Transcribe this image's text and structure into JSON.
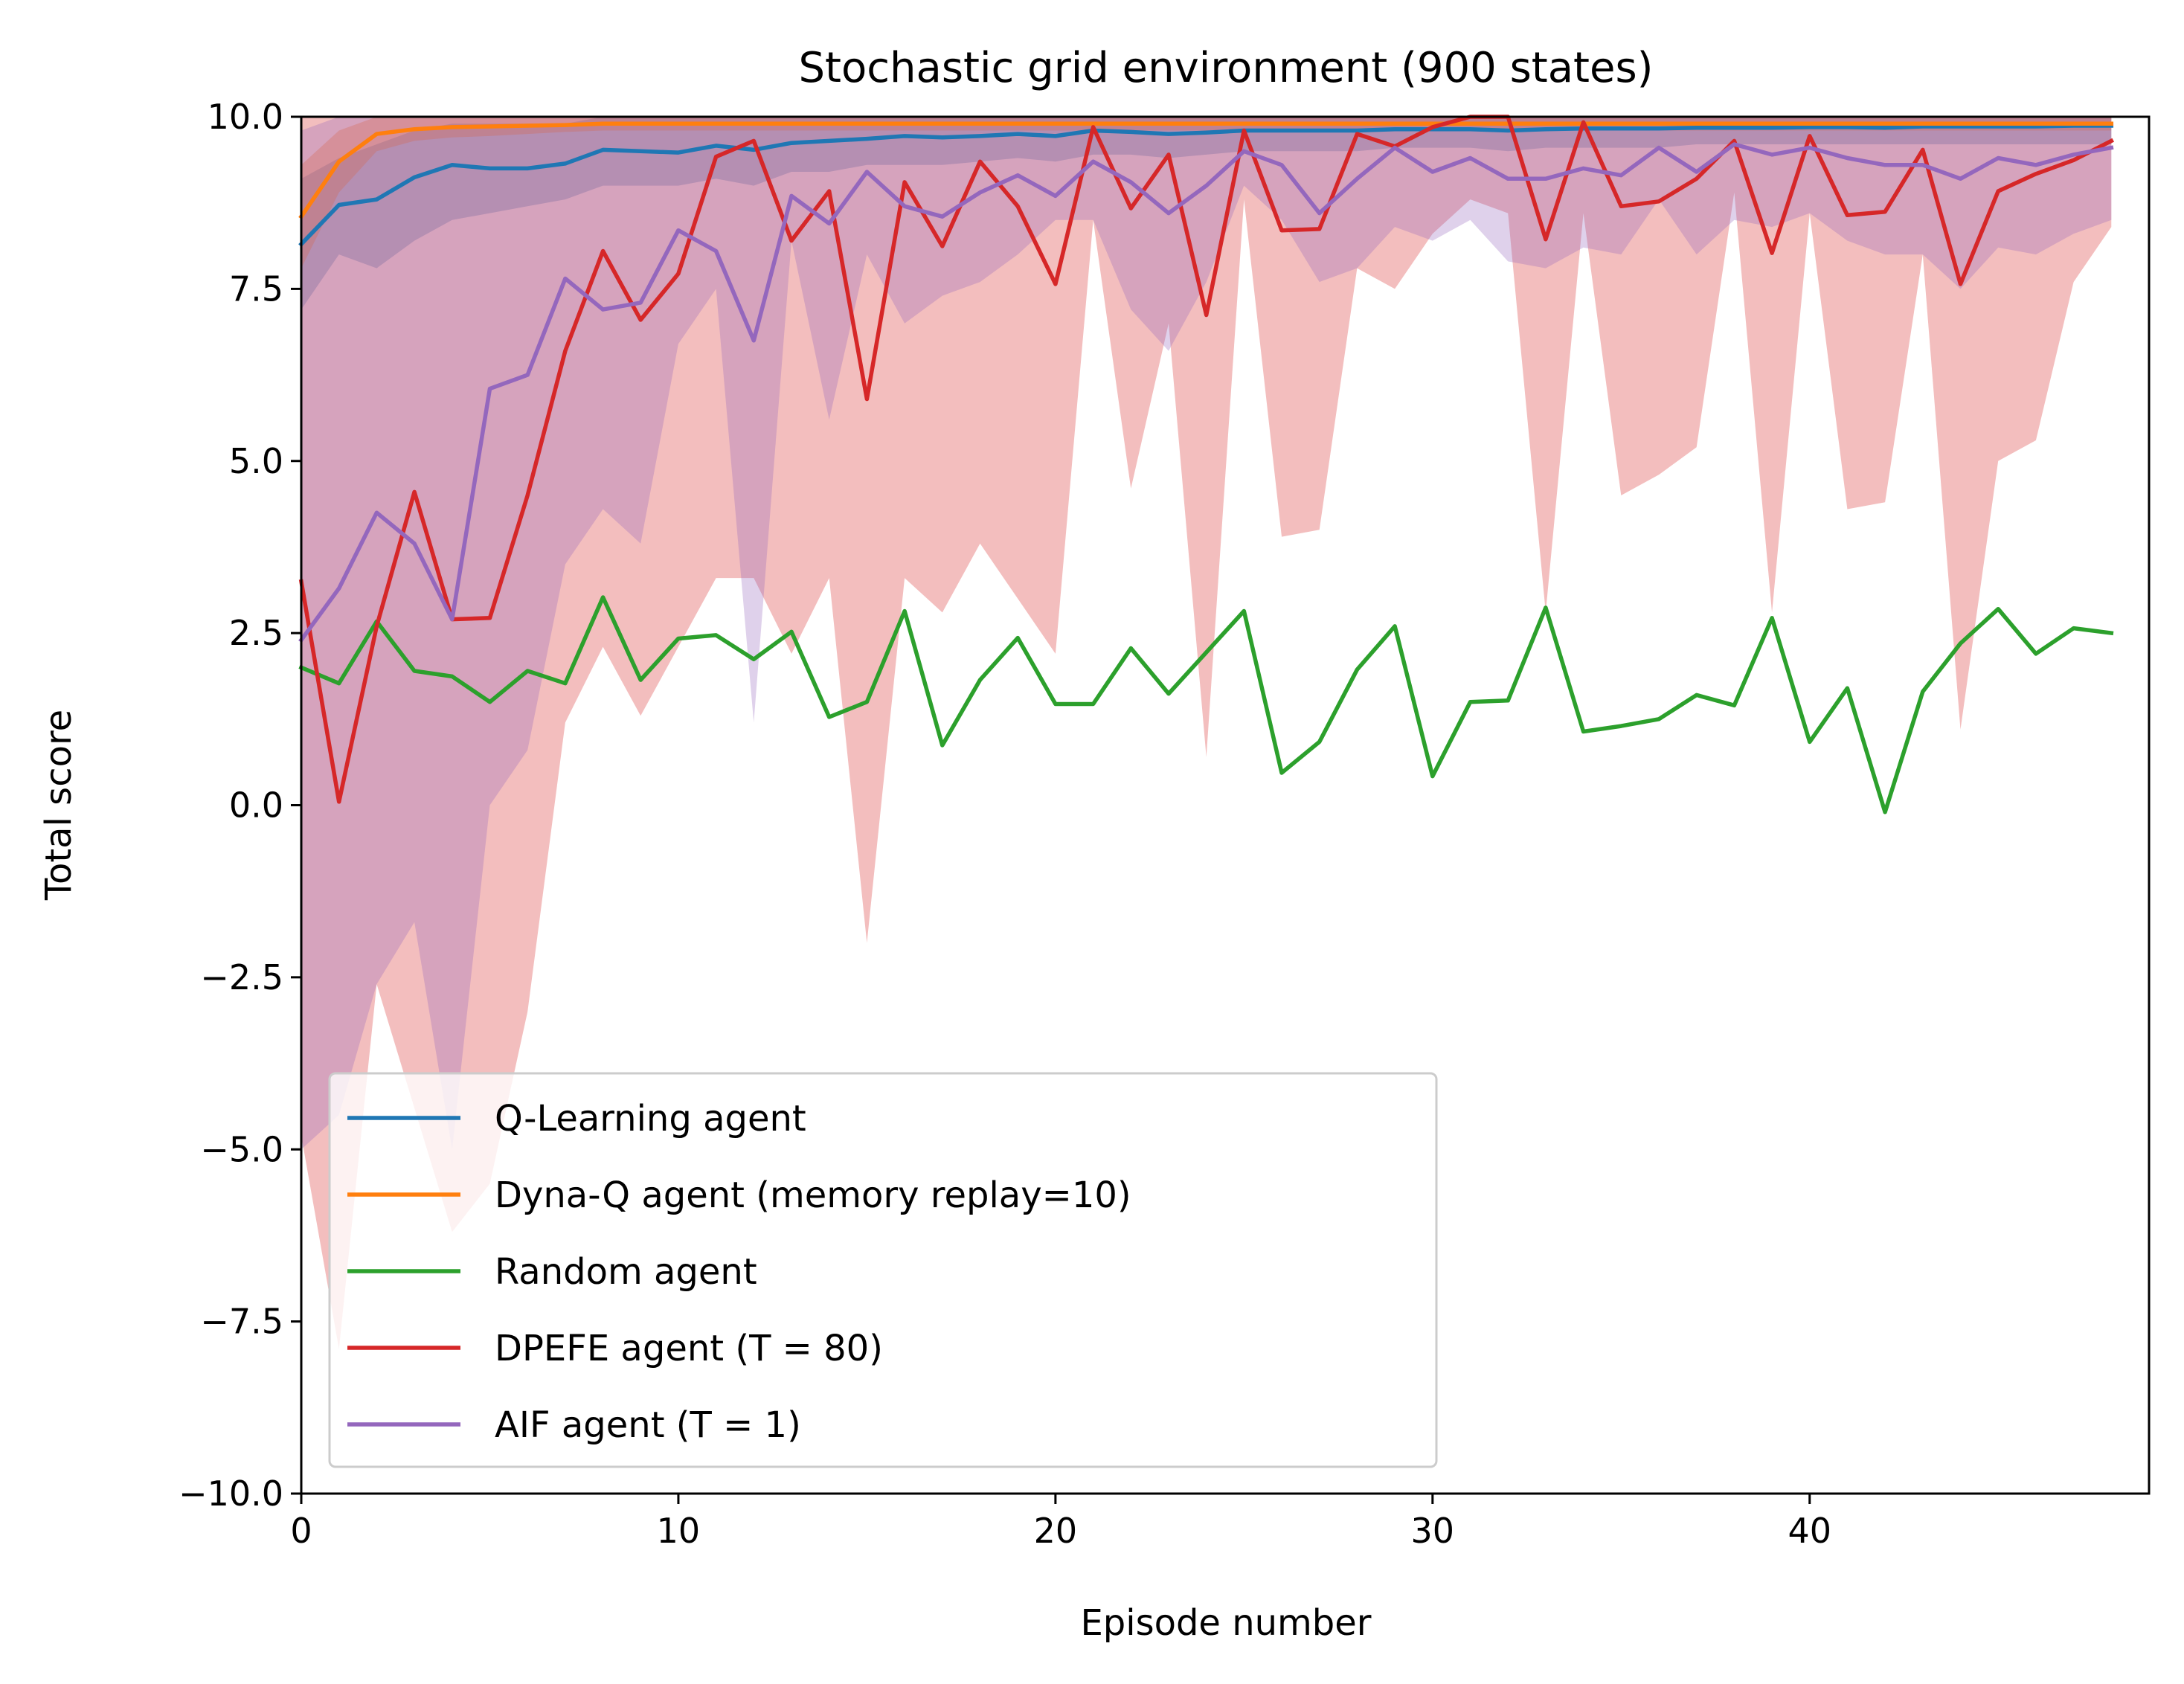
{
  "chart_data": {
    "type": "line",
    "title": "Stochastic grid environment (900 states)",
    "xlabel": "Episode number",
    "ylabel": "Total score",
    "xlim": [
      0,
      49
    ],
    "ylim": [
      -10,
      10
    ],
    "x_ticks": [
      0,
      10,
      20,
      30,
      40
    ],
    "x_tick_labels": [
      "0",
      "10",
      "20",
      "30",
      "40"
    ],
    "y_ticks": [
      -10,
      -7.5,
      -5,
      -2.5,
      0,
      2.5,
      5,
      7.5,
      10
    ],
    "y_tick_labels": [
      "−10.0",
      "−7.5",
      "−5.0",
      "−2.5",
      "0.0",
      "2.5",
      "5.0",
      "7.5",
      "10.0"
    ],
    "grid": false,
    "legend_position": "lower-left",
    "x": [
      0,
      1,
      2,
      3,
      4,
      5,
      6,
      7,
      8,
      9,
      10,
      11,
      12,
      13,
      14,
      15,
      16,
      17,
      18,
      19,
      20,
      21,
      22,
      23,
      24,
      25,
      26,
      27,
      28,
      29,
      30,
      31,
      32,
      33,
      34,
      35,
      36,
      37,
      38,
      39,
      40,
      41,
      42,
      43,
      44,
      45,
      46,
      47,
      48
    ],
    "series": [
      {
        "name": "Q-Learning agent",
        "color": "#1f77b4",
        "values": [
          8.15,
          8.72,
          8.8,
          9.12,
          9.3,
          9.25,
          9.25,
          9.32,
          9.52,
          9.5,
          9.48,
          9.58,
          9.52,
          9.62,
          9.65,
          9.68,
          9.72,
          9.7,
          9.72,
          9.75,
          9.72,
          9.8,
          9.78,
          9.75,
          9.77,
          9.8,
          9.8,
          9.8,
          9.8,
          9.82,
          9.82,
          9.82,
          9.8,
          9.82,
          9.83,
          9.83,
          9.83,
          9.84,
          9.84,
          9.84,
          9.85,
          9.85,
          9.84,
          9.86,
          9.86,
          9.86,
          9.86,
          9.87,
          9.87
        ],
        "band_lower": [
          7.2,
          8.0,
          7.8,
          8.2,
          8.5,
          8.6,
          8.7,
          8.8,
          9.0,
          9.0,
          9.0,
          9.1,
          9.0,
          9.2,
          9.2,
          9.3,
          9.3,
          9.3,
          9.35,
          9.4,
          9.35,
          9.45,
          9.45,
          9.4,
          9.45,
          9.5,
          9.5,
          9.5,
          9.5,
          9.55,
          9.55,
          9.55,
          9.5,
          9.55,
          9.55,
          9.55,
          9.55,
          9.6,
          9.6,
          9.6,
          9.6,
          9.6,
          9.6,
          9.6,
          9.6,
          9.6,
          9.6,
          9.6,
          9.6
        ],
        "band_upper": [
          9.1,
          9.4,
          9.6,
          9.8,
          9.9,
          9.9,
          9.9,
          9.9,
          10.0,
          10.0,
          10.0,
          10.0,
          10.0,
          10.0,
          10.0,
          10.0,
          10.0,
          10.0,
          10.0,
          10.0,
          10.0,
          10.0,
          10.0,
          10.0,
          10.0,
          10.0,
          10.0,
          10.0,
          10.0,
          10.0,
          10.0,
          10.0,
          10.0,
          10.0,
          10.0,
          10.0,
          10.0,
          10.0,
          10.0,
          10.0,
          10.0,
          10.0,
          10.0,
          10.0,
          10.0,
          10.0,
          10.0,
          10.0,
          10.0
        ]
      },
      {
        "name": "Dyna-Q agent (memory replay=10)",
        "color": "#ff7f0e",
        "values": [
          8.55,
          9.35,
          9.75,
          9.82,
          9.85,
          9.86,
          9.87,
          9.88,
          9.9,
          9.9,
          9.9,
          9.9,
          9.9,
          9.9,
          9.9,
          9.9,
          9.9,
          9.9,
          9.9,
          9.9,
          9.9,
          9.9,
          9.9,
          9.9,
          9.9,
          9.9,
          9.9,
          9.9,
          9.9,
          9.9,
          9.9,
          9.9,
          9.9,
          9.9,
          9.9,
          9.9,
          9.9,
          9.9,
          9.9,
          9.9,
          9.9,
          9.9,
          9.9,
          9.9,
          9.9,
          9.9,
          9.9,
          9.9,
          9.9
        ],
        "band_lower": [
          7.8,
          8.9,
          9.5,
          9.65,
          9.7,
          9.72,
          9.75,
          9.78,
          9.8,
          9.8,
          9.8,
          9.8,
          9.8,
          9.8,
          9.8,
          9.8,
          9.8,
          9.8,
          9.8,
          9.8,
          9.8,
          9.8,
          9.8,
          9.8,
          9.8,
          9.8,
          9.8,
          9.8,
          9.8,
          9.8,
          9.8,
          9.8,
          9.8,
          9.8,
          9.8,
          9.8,
          9.8,
          9.8,
          9.8,
          9.8,
          9.8,
          9.8,
          9.8,
          9.8,
          9.8,
          9.8,
          9.8,
          9.8,
          9.8
        ],
        "band_upper": [
          9.3,
          9.8,
          10.0,
          10.0,
          10.0,
          10.0,
          10.0,
          10.0,
          10.0,
          10.0,
          10.0,
          10.0,
          10.0,
          10.0,
          10.0,
          10.0,
          10.0,
          10.0,
          10.0,
          10.0,
          10.0,
          10.0,
          10.0,
          10.0,
          10.0,
          10.0,
          10.0,
          10.0,
          10.0,
          10.0,
          10.0,
          10.0,
          10.0,
          10.0,
          10.0,
          10.0,
          10.0,
          10.0,
          10.0,
          10.0,
          10.0,
          10.0,
          10.0,
          10.0,
          10.0,
          10.0,
          10.0,
          10.0,
          10.0
        ]
      },
      {
        "name": "Random agent",
        "color": "#2ca02c",
        "values": [
          2.0,
          1.77,
          2.67,
          1.95,
          1.87,
          1.5,
          1.95,
          1.77,
          3.02,
          1.82,
          2.42,
          2.47,
          2.12,
          2.52,
          1.28,
          1.5,
          2.82,
          0.87,
          1.82,
          2.43,
          1.47,
          1.47,
          2.28,
          1.62,
          2.22,
          2.82,
          0.47,
          0.92,
          1.97,
          2.6,
          0.42,
          1.5,
          1.52,
          2.87,
          1.07,
          1.15,
          1.25,
          1.6,
          1.45,
          2.72,
          0.92,
          1.7,
          -0.1,
          1.65,
          2.35,
          2.85,
          2.2,
          2.57,
          2.5
        ]
      },
      {
        "name": "DPEFE agent (T = 80)",
        "color": "#d62728",
        "values": [
          3.25,
          0.05,
          2.6,
          4.55,
          2.7,
          2.72,
          4.5,
          6.6,
          8.05,
          7.05,
          7.72,
          9.42,
          9.65,
          8.2,
          8.92,
          5.9,
          9.05,
          8.12,
          9.35,
          8.7,
          7.57,
          9.85,
          8.67,
          9.45,
          7.12,
          9.8,
          8.35,
          8.37,
          9.75,
          9.57,
          9.85,
          10.0,
          10.0,
          8.22,
          9.92,
          8.7,
          8.77,
          9.1,
          9.65,
          8.02,
          9.72,
          8.57,
          8.62,
          9.52,
          7.57,
          8.92,
          9.17,
          9.37,
          9.65
        ],
        "band_lower": [
          -4.8,
          -7.9,
          -2.6,
          -4.4,
          -6.2,
          -5.5,
          -3.0,
          1.2,
          2.3,
          1.3,
          2.3,
          3.3,
          3.3,
          2.2,
          3.3,
          -2.0,
          3.3,
          2.8,
          3.8,
          3.0,
          2.2,
          8.5,
          4.6,
          7.0,
          0.7,
          8.8,
          3.9,
          4.0,
          7.8,
          7.5,
          8.3,
          8.8,
          8.6,
          2.8,
          8.6,
          4.5,
          4.8,
          5.2,
          8.9,
          2.8,
          8.6,
          4.3,
          4.4,
          8.0,
          1.1,
          5.0,
          5.3,
          7.6,
          8.4
        ],
        "band_upper": [
          10.0,
          10.0,
          10.0,
          10.0,
          10.0,
          10.0,
          10.0,
          10.0,
          10.0,
          10.0,
          10.0,
          10.0,
          10.0,
          10.0,
          10.0,
          10.0,
          10.0,
          10.0,
          10.0,
          10.0,
          10.0,
          10.0,
          10.0,
          10.0,
          10.0,
          10.0,
          10.0,
          10.0,
          10.0,
          10.0,
          10.0,
          10.0,
          10.0,
          10.0,
          10.0,
          10.0,
          10.0,
          10.0,
          10.0,
          10.0,
          10.0,
          10.0,
          10.0,
          10.0,
          10.0,
          10.0,
          10.0,
          10.0,
          10.0
        ]
      },
      {
        "name": "AIF agent (T = 1)",
        "color": "#9467bd",
        "values": [
          2.4,
          3.15,
          4.25,
          3.8,
          2.7,
          6.05,
          6.25,
          7.65,
          7.2,
          7.3,
          8.35,
          8.05,
          6.75,
          8.85,
          8.45,
          9.2,
          8.7,
          8.55,
          8.9,
          9.15,
          8.85,
          9.35,
          9.05,
          8.6,
          9.0,
          9.5,
          9.3,
          8.6,
          9.1,
          9.55,
          9.2,
          9.4,
          9.1,
          9.1,
          9.25,
          9.15,
          9.55,
          9.2,
          9.6,
          9.45,
          9.55,
          9.4,
          9.3,
          9.3,
          9.1,
          9.4,
          9.3,
          9.45,
          9.55
        ],
        "band_lower": [
          -5.0,
          -4.5,
          -2.6,
          -1.7,
          -5.0,
          0.0,
          0.8,
          3.5,
          4.3,
          3.8,
          6.7,
          7.5,
          1.2,
          8.2,
          5.6,
          8.0,
          7.0,
          7.4,
          7.6,
          8.0,
          8.5,
          8.5,
          7.2,
          6.6,
          7.6,
          9.0,
          8.5,
          7.6,
          7.8,
          8.4,
          8.2,
          8.5,
          7.9,
          7.8,
          8.1,
          8.0,
          8.8,
          8.0,
          8.5,
          8.4,
          8.6,
          8.2,
          8.0,
          8.0,
          7.5,
          8.1,
          8.0,
          8.3,
          8.5
        ],
        "band_upper": [
          9.8,
          10.0,
          10.0,
          10.0,
          10.0,
          10.0,
          10.0,
          10.0,
          10.0,
          10.0,
          10.0,
          10.0,
          10.0,
          10.0,
          10.0,
          10.0,
          10.0,
          10.0,
          10.0,
          10.0,
          10.0,
          10.0,
          10.0,
          10.0,
          10.0,
          10.0,
          10.0,
          10.0,
          10.0,
          10.0,
          10.0,
          10.0,
          10.0,
          10.0,
          10.0,
          10.0,
          10.0,
          10.0,
          10.0,
          10.0,
          10.0,
          10.0,
          10.0,
          10.0,
          10.0,
          10.0,
          10.0,
          10.0,
          10.0
        ]
      }
    ]
  }
}
